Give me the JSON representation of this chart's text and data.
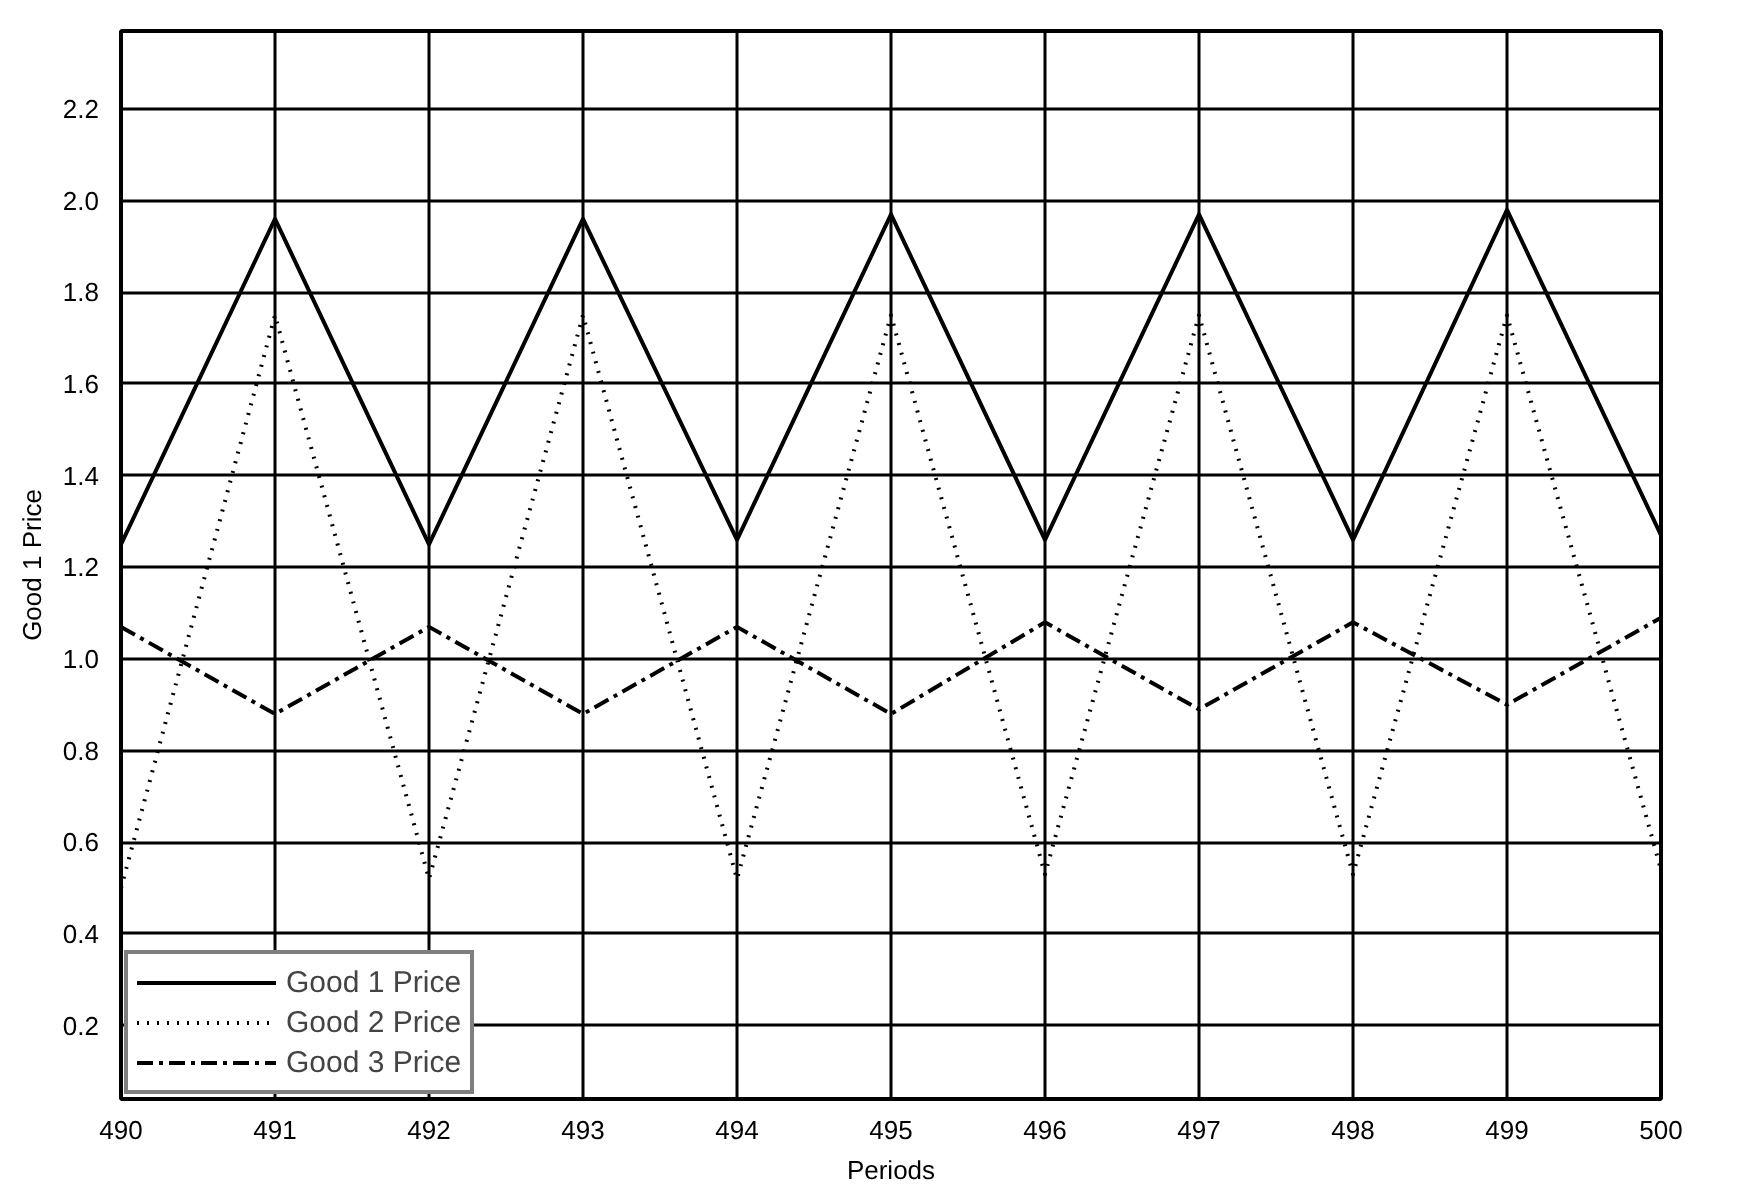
{
  "chart_data": {
    "type": "line",
    "xlabel": "Periods",
    "ylabel": "Good 1 Price",
    "x": [
      490,
      491,
      492,
      493,
      494,
      495,
      496,
      497,
      498,
      499,
      500
    ],
    "series": [
      {
        "name": "Good 1 Price",
        "color": "#000000",
        "line_style": "solid",
        "values": [
          1.25,
          1.96,
          1.25,
          1.96,
          1.26,
          1.97,
          1.26,
          1.97,
          1.26,
          1.98,
          1.27
        ]
      },
      {
        "name": "Good 2 Price",
        "color": "#000000",
        "line_style": "dotted",
        "values": [
          0.5,
          1.75,
          0.52,
          1.75,
          0.52,
          1.75,
          0.53,
          1.75,
          0.53,
          1.75,
          0.54
        ]
      },
      {
        "name": "Good 3 Price",
        "color": "#000000",
        "line_style": "dashdot",
        "values": [
          1.07,
          0.88,
          1.07,
          0.88,
          1.07,
          0.88,
          1.08,
          0.89,
          1.08,
          0.9,
          1.09
        ]
      }
    ],
    "xlim": [
      490,
      500
    ],
    "xticks": [
      490,
      491,
      492,
      493,
      494,
      495,
      496,
      497,
      498,
      499,
      500
    ],
    "ylim": [
      0.04,
      2.37
    ],
    "yticks": [
      {
        "value": 0.2,
        "label": "0.2"
      },
      {
        "value": 0.4,
        "label": "0.4"
      },
      {
        "value": 0.6,
        "label": "0.6"
      },
      {
        "value": 0.8,
        "label": "0.8"
      },
      {
        "value": 1.0,
        "label": "1.0"
      },
      {
        "value": 1.2,
        "label": "1.2"
      },
      {
        "value": 1.4,
        "label": "1.4"
      },
      {
        "value": 1.6,
        "label": "1.6"
      },
      {
        "value": 1.8,
        "label": "1.8"
      },
      {
        "value": 2.0,
        "label": "2.0"
      },
      {
        "value": 2.2,
        "label": "2.2"
      }
    ],
    "grid": true,
    "legend": "bottom left",
    "marker": "none"
  }
}
